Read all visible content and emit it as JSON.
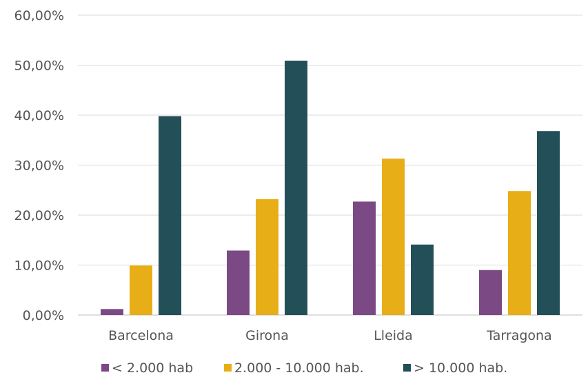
{
  "chart_data": {
    "type": "bar",
    "title": "",
    "xlabel": "",
    "ylabel": "",
    "categories": [
      "Barcelona",
      "Girona",
      "Lleida",
      "Tarragona"
    ],
    "series": [
      {
        "name": "< 2.000 hab",
        "color": "#7b4a85",
        "values": [
          1.2,
          12.9,
          22.7,
          9.0
        ]
      },
      {
        "name": "2.000 - 10.000 hab.",
        "color": "#e8ae17",
        "values": [
          9.9,
          23.2,
          31.3,
          24.8
        ]
      },
      {
        "name": "> 10.000 hab.",
        "color": "#234f58",
        "values": [
          39.8,
          50.9,
          14.1,
          36.8
        ]
      }
    ],
    "ylim": [
      0,
      60
    ],
    "yticks": [
      0,
      10,
      20,
      30,
      40,
      50,
      60
    ],
    "ytick_labels": [
      "0,00%",
      "10,00%",
      "20,00%",
      "30,00%",
      "40,00%",
      "50,00%",
      "60,00%"
    ],
    "grid": true,
    "legend_position": "bottom"
  }
}
